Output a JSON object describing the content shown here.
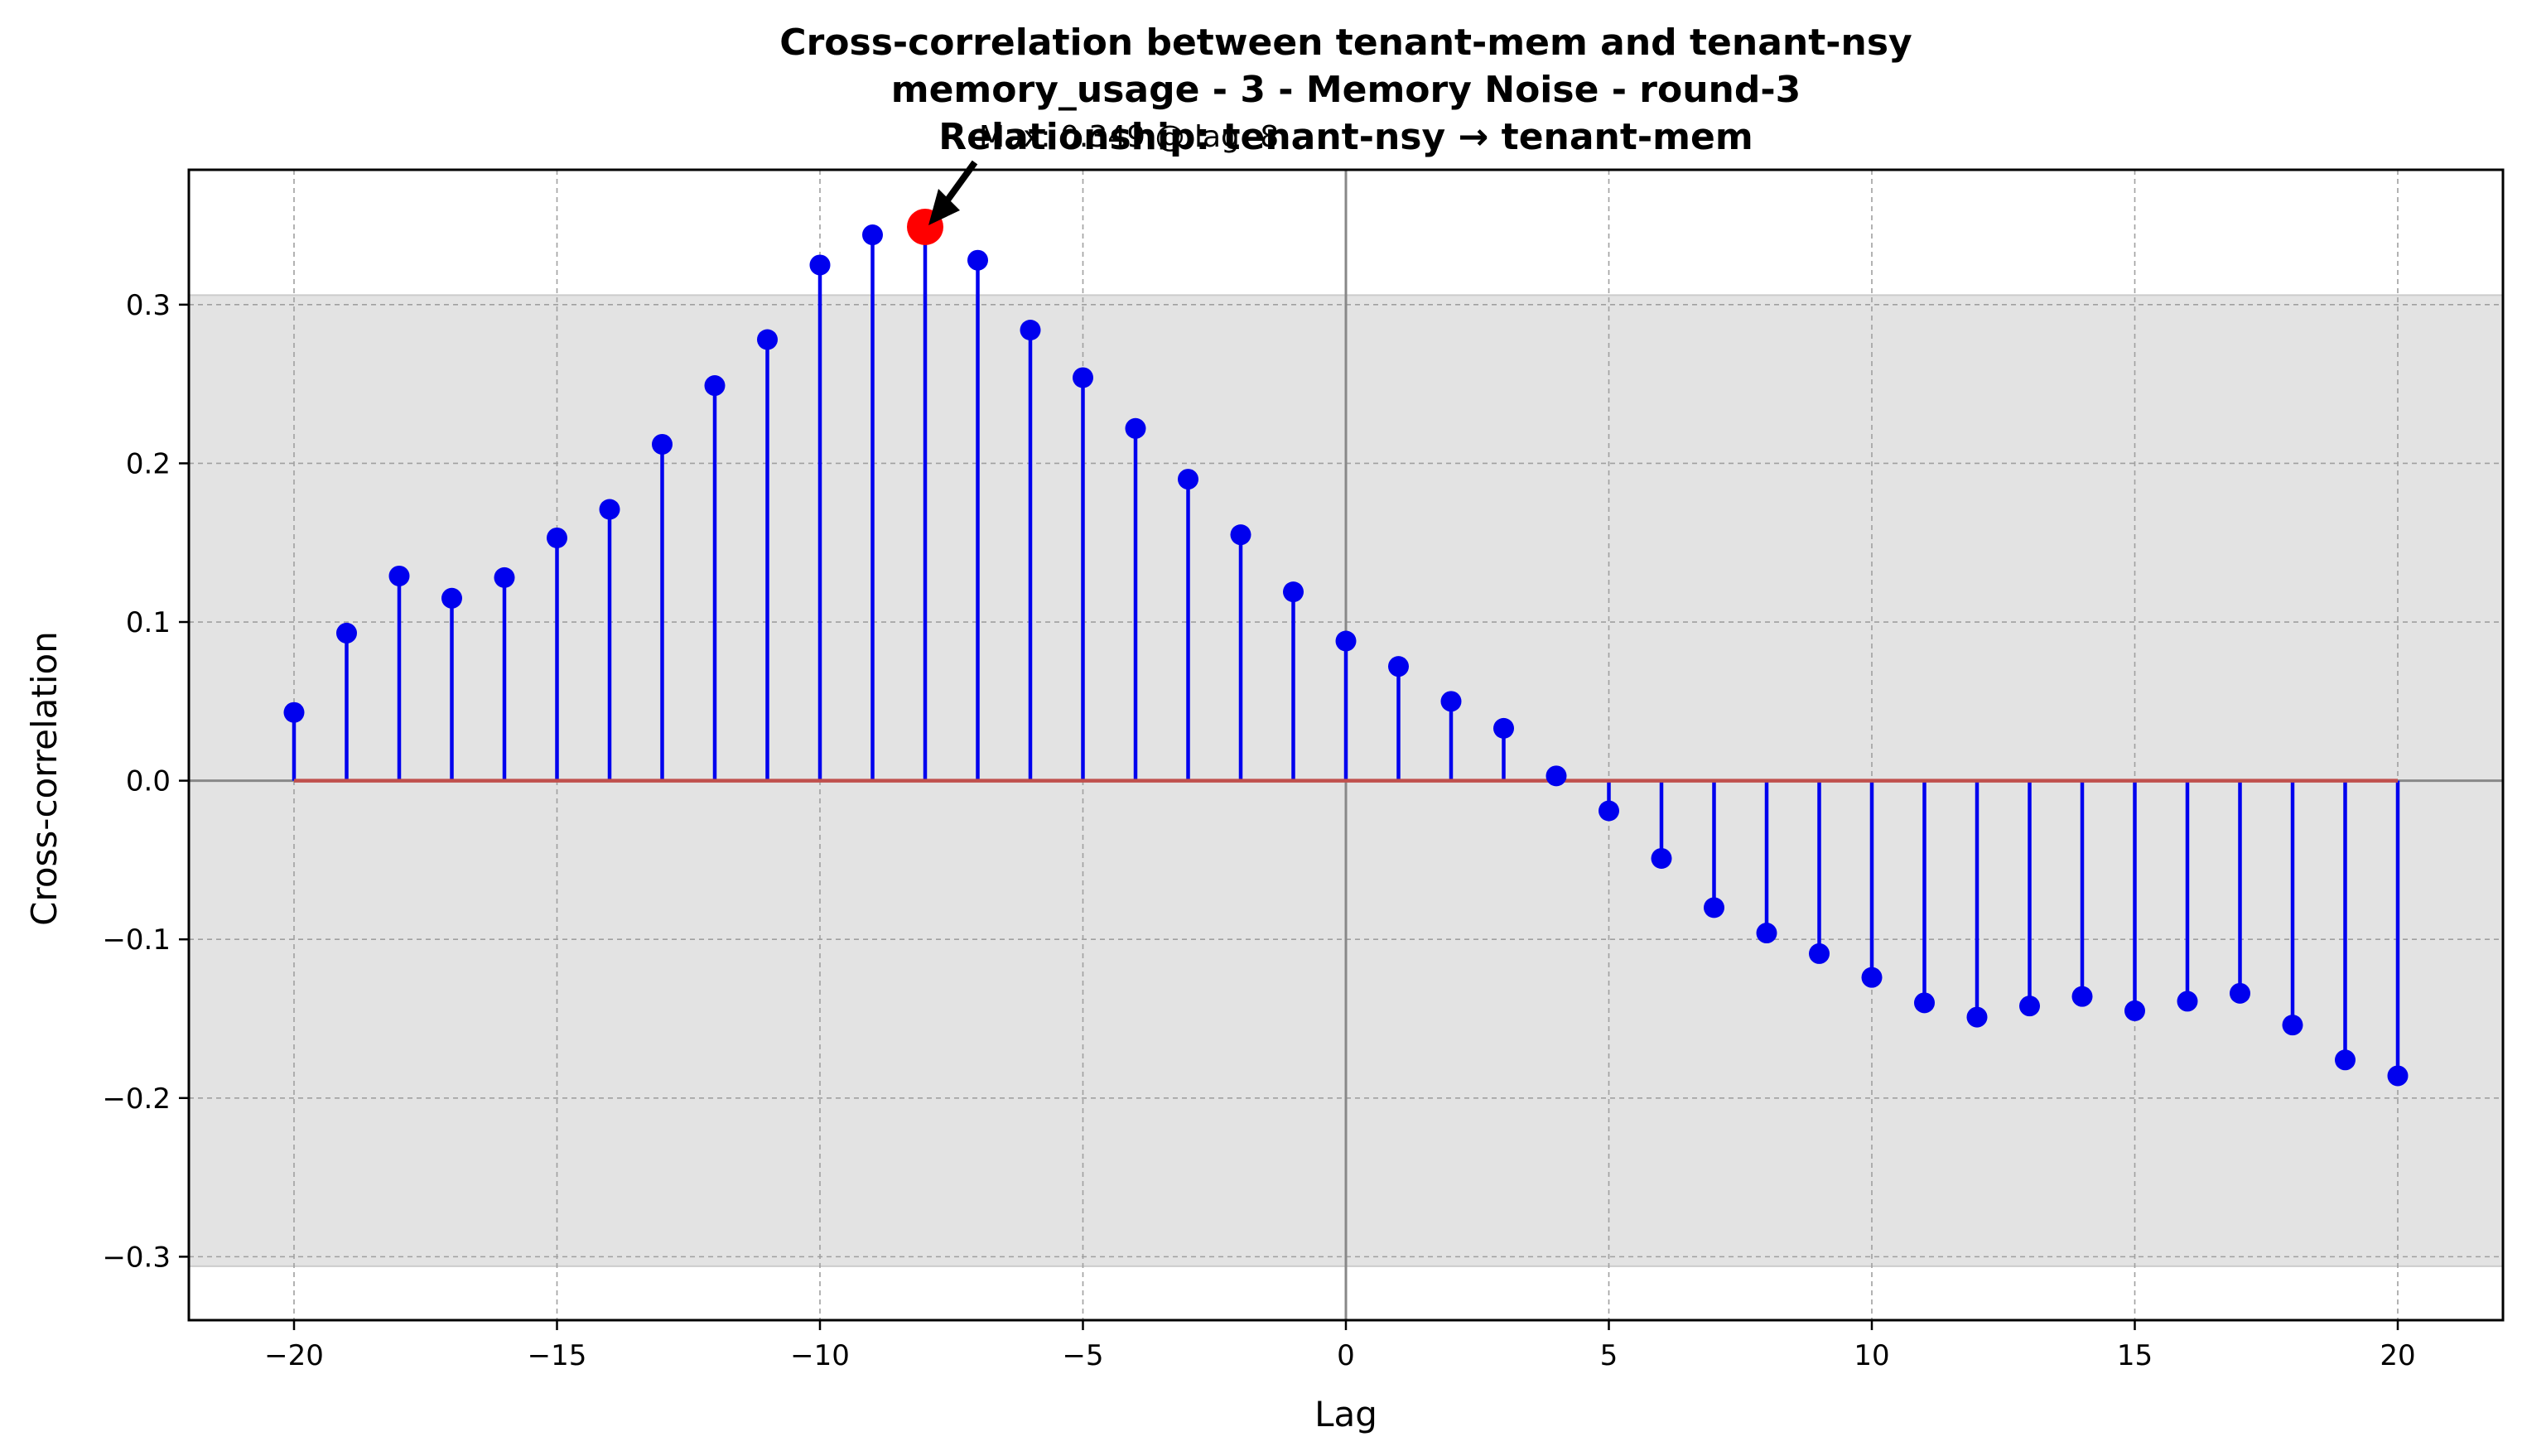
{
  "chart_data": {
    "type": "stem",
    "title_lines": [
      "Cross-correlation between tenant-mem and tenant-nsy",
      "memory_usage - 3 - Memory Noise - round-3",
      "Relationship: tenant-nsy → tenant-mem"
    ],
    "xlabel": "Lag",
    "ylabel": "Cross-correlation",
    "xlim": [
      -22,
      22
    ],
    "ylim": [
      -0.34,
      0.385
    ],
    "xticks": [
      -20,
      -15,
      -10,
      -5,
      0,
      5,
      10,
      15,
      20
    ],
    "xtick_labels": [
      "−20",
      "−15",
      "−10",
      "−5",
      "0",
      "5",
      "10",
      "15",
      "20"
    ],
    "yticks": [
      -0.3,
      -0.2,
      -0.1,
      0.0,
      0.1,
      0.2,
      0.3
    ],
    "ytick_labels": [
      "−0.3",
      "−0.2",
      "−0.1",
      "0.0",
      "0.1",
      "0.2",
      "0.3"
    ],
    "grid": true,
    "confidence_band": [
      -0.306,
      0.306
    ],
    "lags": [
      -20,
      -19,
      -18,
      -17,
      -16,
      -15,
      -14,
      -13,
      -12,
      -11,
      -10,
      -9,
      -8,
      -7,
      -6,
      -5,
      -4,
      -3,
      -2,
      -1,
      0,
      1,
      2,
      3,
      4,
      5,
      6,
      7,
      8,
      9,
      10,
      11,
      12,
      13,
      14,
      15,
      16,
      17,
      18,
      19,
      20
    ],
    "values": [
      0.043,
      0.093,
      0.129,
      0.115,
      0.128,
      0.153,
      0.171,
      0.212,
      0.249,
      0.278,
      0.325,
      0.344,
      0.349,
      0.328,
      0.284,
      0.254,
      0.222,
      0.19,
      0.155,
      0.119,
      0.088,
      0.072,
      0.05,
      0.033,
      0.003,
      -0.019,
      -0.049,
      -0.08,
      -0.096,
      -0.109,
      -0.124,
      -0.14,
      -0.149,
      -0.142,
      -0.136,
      -0.145,
      -0.139,
      -0.134,
      -0.154,
      -0.176,
      -0.186
    ],
    "max_point": {
      "lag": -8,
      "value": 0.349
    },
    "annotation": "Max: 0.349 @ lag -8",
    "colors": {
      "stem": "#0000ee",
      "marker": "#0000ee",
      "baseline": "#c0504d",
      "max_marker": "#ff0000",
      "band": "#e3e3e3",
      "zero_lines": "#888888",
      "grid": "#a0a0a0"
    }
  }
}
